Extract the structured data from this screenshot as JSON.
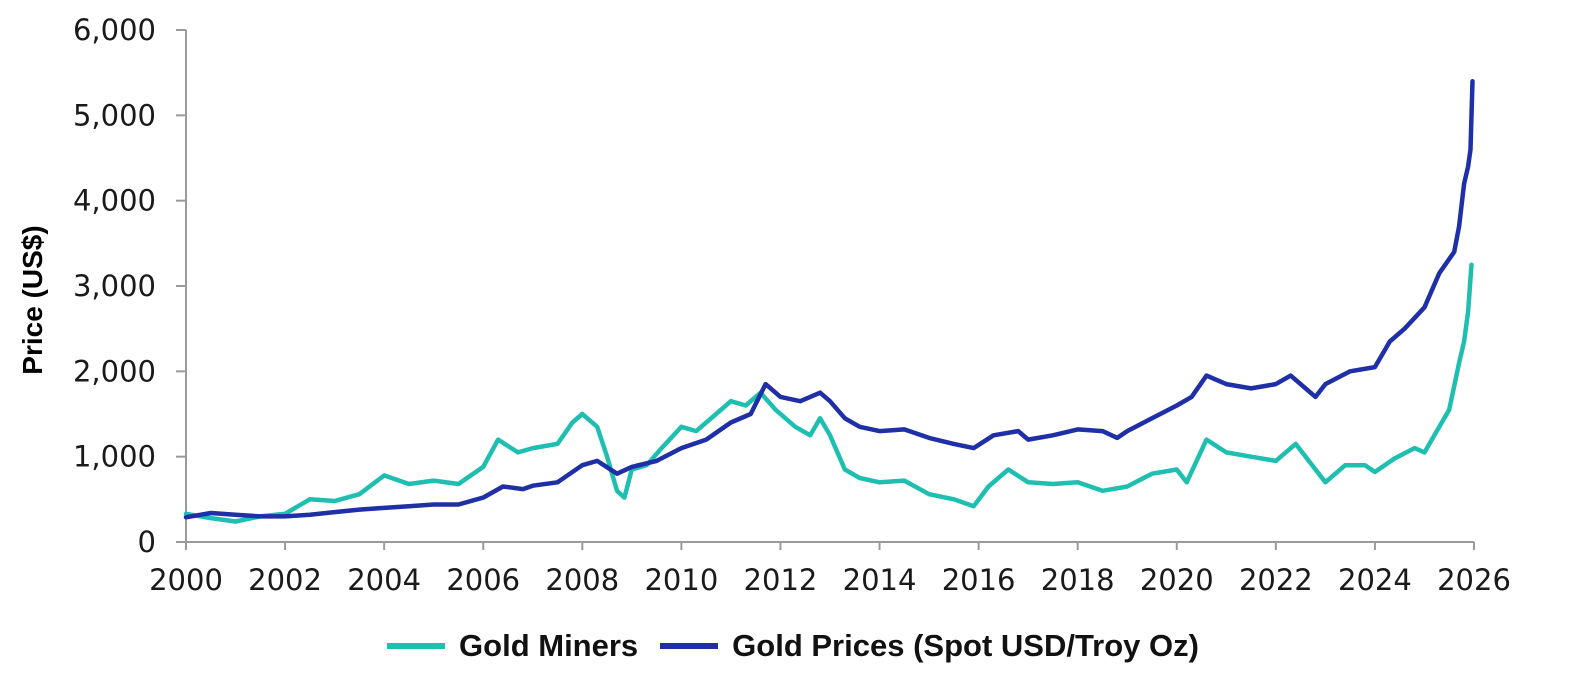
{
  "chart_data": {
    "type": "line",
    "title": "",
    "xlabel": "",
    "ylabel": "Price (US$)",
    "xlim": [
      2000,
      2026
    ],
    "ylim": [
      0,
      6000
    ],
    "x_ticks": [
      "2000",
      "2002",
      "2004",
      "2006",
      "2008",
      "2010",
      "2012",
      "2014",
      "2016",
      "2018",
      "2020",
      "2022",
      "2024",
      "2026"
    ],
    "y_ticks": [
      "0",
      "1,000",
      "2,000",
      "3,000",
      "4,000",
      "5,000",
      "6,000"
    ],
    "grid": false,
    "legend_position": "bottom",
    "series": [
      {
        "name": "Gold Miners",
        "color": "#1ebfb0",
        "points": [
          [
            2000.0,
            330
          ],
          [
            2000.5,
            280
          ],
          [
            2001.0,
            240
          ],
          [
            2001.5,
            300
          ],
          [
            2002.0,
            330
          ],
          [
            2002.5,
            500
          ],
          [
            2003.0,
            480
          ],
          [
            2003.5,
            560
          ],
          [
            2004.0,
            780
          ],
          [
            2004.5,
            680
          ],
          [
            2005.0,
            720
          ],
          [
            2005.5,
            680
          ],
          [
            2006.0,
            880
          ],
          [
            2006.3,
            1200
          ],
          [
            2006.7,
            1050
          ],
          [
            2007.0,
            1100
          ],
          [
            2007.5,
            1150
          ],
          [
            2007.8,
            1400
          ],
          [
            2008.0,
            1500
          ],
          [
            2008.3,
            1350
          ],
          [
            2008.5,
            1000
          ],
          [
            2008.7,
            600
          ],
          [
            2008.85,
            520
          ],
          [
            2009.0,
            850
          ],
          [
            2009.3,
            900
          ],
          [
            2009.6,
            1100
          ],
          [
            2010.0,
            1350
          ],
          [
            2010.3,
            1300
          ],
          [
            2010.7,
            1500
          ],
          [
            2011.0,
            1650
          ],
          [
            2011.3,
            1600
          ],
          [
            2011.6,
            1750
          ],
          [
            2011.9,
            1550
          ],
          [
            2012.3,
            1350
          ],
          [
            2012.6,
            1250
          ],
          [
            2012.8,
            1450
          ],
          [
            2013.0,
            1250
          ],
          [
            2013.3,
            850
          ],
          [
            2013.6,
            750
          ],
          [
            2014.0,
            700
          ],
          [
            2014.5,
            720
          ],
          [
            2015.0,
            560
          ],
          [
            2015.5,
            500
          ],
          [
            2015.9,
            420
          ],
          [
            2016.2,
            650
          ],
          [
            2016.6,
            850
          ],
          [
            2017.0,
            700
          ],
          [
            2017.5,
            680
          ],
          [
            2018.0,
            700
          ],
          [
            2018.5,
            600
          ],
          [
            2019.0,
            650
          ],
          [
            2019.5,
            800
          ],
          [
            2020.0,
            850
          ],
          [
            2020.2,
            700
          ],
          [
            2020.6,
            1200
          ],
          [
            2021.0,
            1050
          ],
          [
            2021.5,
            1000
          ],
          [
            2022.0,
            950
          ],
          [
            2022.4,
            1150
          ],
          [
            2022.8,
            850
          ],
          [
            2023.0,
            700
          ],
          [
            2023.4,
            900
          ],
          [
            2023.8,
            900
          ],
          [
            2024.0,
            820
          ],
          [
            2024.4,
            980
          ],
          [
            2024.8,
            1100
          ],
          [
            2025.0,
            1050
          ],
          [
            2025.3,
            1350
          ],
          [
            2025.5,
            1550
          ],
          [
            2025.7,
            2100
          ],
          [
            2025.8,
            2350
          ],
          [
            2025.88,
            2700
          ],
          [
            2025.95,
            3250
          ]
        ]
      },
      {
        "name": "Gold Prices (Spot USD/Troy Oz)",
        "color": "#1e2fa8",
        "points": [
          [
            2000.0,
            290
          ],
          [
            2000.5,
            340
          ],
          [
            2001.0,
            320
          ],
          [
            2001.5,
            300
          ],
          [
            2002.0,
            300
          ],
          [
            2002.5,
            320
          ],
          [
            2003.0,
            350
          ],
          [
            2003.5,
            380
          ],
          [
            2004.0,
            400
          ],
          [
            2004.5,
            420
          ],
          [
            2005.0,
            440
          ],
          [
            2005.5,
            440
          ],
          [
            2006.0,
            520
          ],
          [
            2006.4,
            650
          ],
          [
            2006.8,
            620
          ],
          [
            2007.0,
            660
          ],
          [
            2007.5,
            700
          ],
          [
            2008.0,
            900
          ],
          [
            2008.3,
            950
          ],
          [
            2008.7,
            800
          ],
          [
            2009.0,
            880
          ],
          [
            2009.5,
            950
          ],
          [
            2010.0,
            1100
          ],
          [
            2010.5,
            1200
          ],
          [
            2011.0,
            1400
          ],
          [
            2011.4,
            1500
          ],
          [
            2011.7,
            1850
          ],
          [
            2012.0,
            1700
          ],
          [
            2012.4,
            1650
          ],
          [
            2012.8,
            1750
          ],
          [
            2013.0,
            1650
          ],
          [
            2013.3,
            1450
          ],
          [
            2013.6,
            1350
          ],
          [
            2014.0,
            1300
          ],
          [
            2014.5,
            1320
          ],
          [
            2015.0,
            1220
          ],
          [
            2015.5,
            1150
          ],
          [
            2015.9,
            1100
          ],
          [
            2016.3,
            1250
          ],
          [
            2016.8,
            1300
          ],
          [
            2017.0,
            1200
          ],
          [
            2017.5,
            1250
          ],
          [
            2018.0,
            1320
          ],
          [
            2018.5,
            1300
          ],
          [
            2018.8,
            1220
          ],
          [
            2019.0,
            1300
          ],
          [
            2019.5,
            1450
          ],
          [
            2020.0,
            1600
          ],
          [
            2020.3,
            1700
          ],
          [
            2020.6,
            1950
          ],
          [
            2021.0,
            1850
          ],
          [
            2021.5,
            1800
          ],
          [
            2022.0,
            1850
          ],
          [
            2022.3,
            1950
          ],
          [
            2022.8,
            1700
          ],
          [
            2023.0,
            1850
          ],
          [
            2023.5,
            2000
          ],
          [
            2024.0,
            2050
          ],
          [
            2024.3,
            2350
          ],
          [
            2024.6,
            2500
          ],
          [
            2025.0,
            2750
          ],
          [
            2025.3,
            3150
          ],
          [
            2025.6,
            3400
          ],
          [
            2025.7,
            3700
          ],
          [
            2025.8,
            4200
          ],
          [
            2025.88,
            4400
          ],
          [
            2025.93,
            4600
          ],
          [
            2025.97,
            5400
          ]
        ]
      }
    ]
  }
}
